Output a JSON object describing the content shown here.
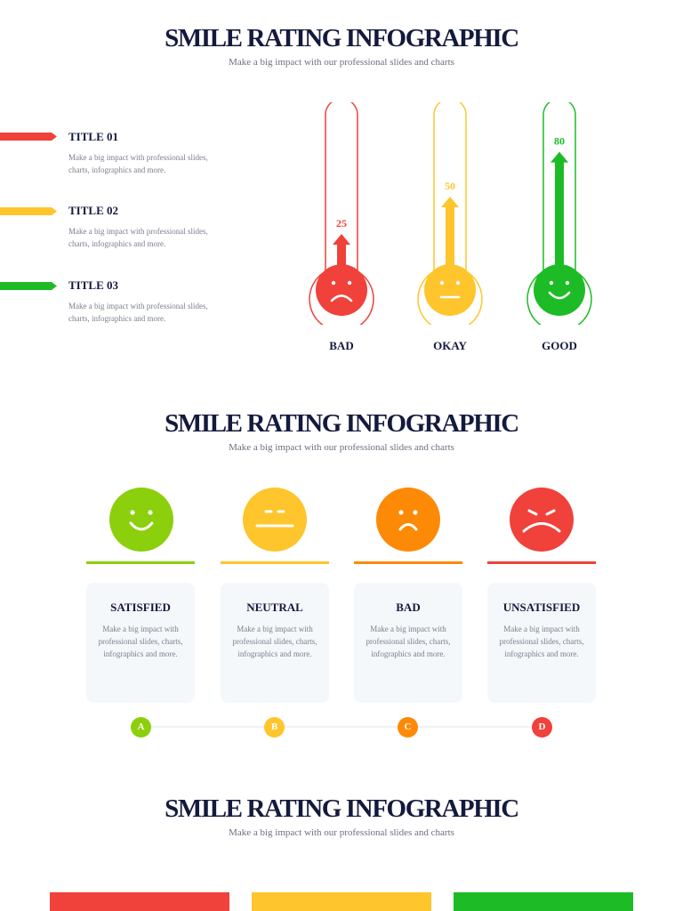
{
  "colors": {
    "red": "#f0413b",
    "yellow": "#fec52c",
    "green": "#1dbc26",
    "lime": "#8ccf0c",
    "orange": "#fc8a07",
    "navy": "#141a3d"
  },
  "section1": {
    "title": "SMILE RATING INFOGRAPHIC",
    "subtitle": "Make a big impact with our professional slides and charts",
    "legend": [
      {
        "title": "TITLE 01",
        "desc": "Make a big impact with professional slides, charts, infographics and more.",
        "color": "#f0413b"
      },
      {
        "title": "TITLE 02",
        "desc": "Make a big impact with professional slides, charts, infographics and more.",
        "color": "#fec52c"
      },
      {
        "title": "TITLE 03",
        "desc": "Make a big impact with professional slides, charts, infographics and more.",
        "color": "#1dbc26"
      }
    ],
    "thermometers": [
      {
        "label": "BAD",
        "value": 25,
        "value_text": "25",
        "mood": "sad-face-icon",
        "color": "#f0413b"
      },
      {
        "label": "OKAY",
        "value": 50,
        "value_text": "50",
        "mood": "neutral-face-icon",
        "color": "#fec52c"
      },
      {
        "label": "GOOD",
        "value": 80,
        "value_text": "80",
        "mood": "happy-face-icon",
        "color": "#1dbc26"
      }
    ]
  },
  "section2": {
    "title": "SMILE RATING INFOGRAPHIC",
    "subtitle": "Make a big impact with our professional slides and charts",
    "cards": [
      {
        "title": "SATISFIED",
        "desc": "Make a big impact with professional slides, charts, infographics and more.",
        "step": "A",
        "icon": "happy-face-icon",
        "color": "#8ccf0c"
      },
      {
        "title": "NEUTRAL",
        "desc": "Make a big impact with professional slides, charts, infographics and more.",
        "step": "B",
        "icon": "neutral-face-icon",
        "color": "#fec52c"
      },
      {
        "title": "BAD",
        "desc": "Make a big impact with professional slides, charts, infographics and more.",
        "step": "C",
        "icon": "sad-face-icon",
        "color": "#fc8a07"
      },
      {
        "title": "UNSATISFIED",
        "desc": "Make a big impact with professional slides, charts, infographics and more.",
        "step": "D",
        "icon": "very-sad-face-icon",
        "color": "#f0413b"
      }
    ]
  },
  "section3": {
    "title": "SMILE RATING INFOGRAPHIC",
    "subtitle": "Make a big impact with our professional slides and charts",
    "bars": [
      {
        "color": "#f0413b"
      },
      {
        "color": "#fec52c"
      },
      {
        "color": "#1dbc26"
      }
    ]
  }
}
